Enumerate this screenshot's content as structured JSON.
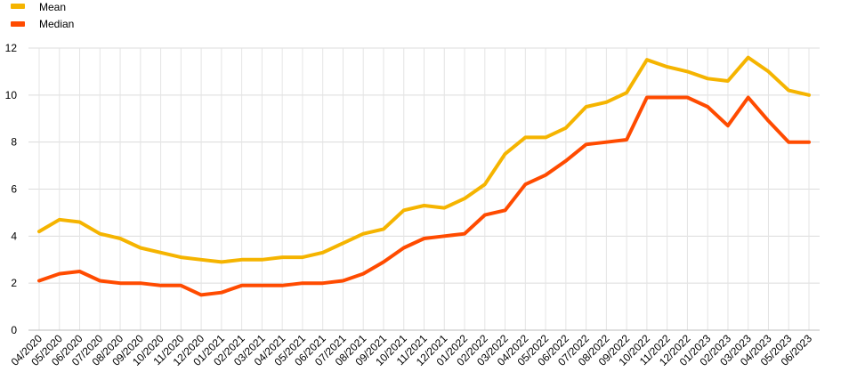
{
  "chart_data": {
    "type": "line",
    "categories": [
      "04/2020",
      "05/2020",
      "06/2020",
      "07/2020",
      "08/2020",
      "09/2020",
      "10/2020",
      "11/2020",
      "12/2020",
      "01/2021",
      "02/2021",
      "03/2021",
      "04/2021",
      "05/2021",
      "06/2021",
      "07/2021",
      "08/2021",
      "09/2021",
      "10/2021",
      "11/2021",
      "12/2021",
      "01/2022",
      "02/2022",
      "03/2022",
      "04/2022",
      "05/2022",
      "06/2022",
      "07/2022",
      "08/2022",
      "09/2022",
      "10/2022",
      "11/2022",
      "12/2022",
      "01/2023",
      "02/2023",
      "03/2023",
      "04/2023",
      "05/2023",
      "06/2023"
    ],
    "series": [
      {
        "name": "Mean",
        "color": "#f5b400",
        "values": [
          4.2,
          4.7,
          4.6,
          4.1,
          3.9,
          3.5,
          3.3,
          3.1,
          3.0,
          2.9,
          3.0,
          3.0,
          3.1,
          3.1,
          3.3,
          3.7,
          4.1,
          4.3,
          5.1,
          5.3,
          5.2,
          5.6,
          6.2,
          7.5,
          8.2,
          8.2,
          8.6,
          9.5,
          9.7,
          10.1,
          11.5,
          11.2,
          11.0,
          10.7,
          10.6,
          11.6,
          11.0,
          10.2,
          10.0
        ]
      },
      {
        "name": "Median",
        "color": "#ff4b00",
        "values": [
          2.1,
          2.4,
          2.5,
          2.1,
          2.0,
          2.0,
          1.9,
          1.9,
          1.5,
          1.6,
          1.9,
          1.9,
          1.9,
          2.0,
          2.0,
          2.1,
          2.4,
          2.9,
          3.5,
          3.9,
          4.0,
          4.1,
          4.9,
          5.1,
          6.2,
          6.6,
          7.2,
          7.9,
          8.0,
          8.1,
          9.9,
          9.9,
          9.9,
          9.5,
          8.7,
          9.9,
          8.9,
          8.0,
          8.0
        ]
      }
    ],
    "y_ticks": [
      "0",
      "2",
      "4",
      "6",
      "8",
      "10",
      "12"
    ],
    "ylim": [
      0,
      12
    ],
    "grid": true,
    "legend_position": "top-left"
  }
}
